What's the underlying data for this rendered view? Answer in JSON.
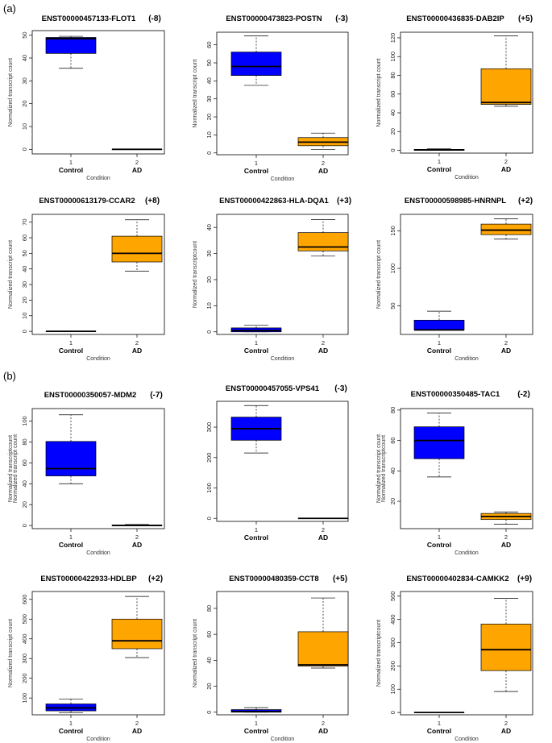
{
  "panels": [
    {
      "label": "(a)"
    },
    {
      "label": "(b)"
    }
  ],
  "chart_data": [
    {
      "type": "box",
      "title": "ENST00000457133-FLOT1",
      "suffix": "(-8)",
      "ylabel": "Normalized transcript count",
      "xlabel": "Condition",
      "ylim": [
        -2,
        52
      ],
      "yticks": [
        0,
        10,
        20,
        30,
        40,
        50
      ],
      "category_numbers": [
        "1",
        "2"
      ],
      "categories": [
        "Control",
        "AD"
      ],
      "series": [
        {
          "name": "Control",
          "color": "#0000ff",
          "min": 35.5,
          "q1": 42,
          "median": 48.5,
          "q3": 49,
          "max": 49.5
        },
        {
          "name": "AD",
          "color": "#ffa500",
          "min": 0,
          "q1": 0,
          "median": 0,
          "q3": 0,
          "max": 0
        }
      ]
    },
    {
      "type": "box",
      "title": "ENST00000473823-POSTN",
      "suffix": "(-3)",
      "ylabel": "Normalized transcript count",
      "xlabel": "Condition",
      "ylim": [
        -1,
        67
      ],
      "yticks": [
        0,
        10,
        20,
        30,
        40,
        50,
        60
      ],
      "category_numbers": [
        "1",
        "2"
      ],
      "categories": [
        "Control",
        "AD"
      ],
      "series": [
        {
          "name": "Control",
          "color": "#0000ff",
          "min": 37.5,
          "q1": 43,
          "median": 48,
          "q3": 56,
          "max": 65
        },
        {
          "name": "AD",
          "color": "#ffa500",
          "min": 2,
          "q1": 4,
          "median": 6,
          "q3": 8.5,
          "max": 11
        }
      ]
    },
    {
      "type": "box",
      "title": "ENST00000436835-DAB2IP",
      "suffix": "(+5)",
      "ylabel": "Normalized transcript count",
      "xlabel": "Condition",
      "ylim": [
        -3,
        126
      ],
      "yticks": [
        0,
        20,
        40,
        60,
        80,
        100,
        120
      ],
      "category_numbers": [
        "1",
        "2"
      ],
      "categories": [
        "Control",
        "AD"
      ],
      "series": [
        {
          "name": "Control",
          "color": "#0000ff",
          "min": 0,
          "q1": 0,
          "median": 0.5,
          "q3": 1,
          "max": 1.5
        },
        {
          "name": "AD",
          "color": "#ffa500",
          "min": 47,
          "q1": 49,
          "median": 51,
          "q3": 87,
          "max": 122
        }
      ]
    },
    {
      "type": "box",
      "title": "ENST00000613179-CCAR2",
      "suffix": "(+8)",
      "ylabel": "Normalized transcript count",
      "xlabel": "Condition",
      "ylim": [
        -2,
        75
      ],
      "yticks": [
        0,
        10,
        20,
        30,
        40,
        50,
        60,
        70
      ],
      "category_numbers": [
        "1",
        "2"
      ],
      "categories": [
        "Control",
        "AD"
      ],
      "series": [
        {
          "name": "Control",
          "color": "#0000ff",
          "min": 0,
          "q1": 0,
          "median": 0,
          "q3": 0,
          "max": 0
        },
        {
          "name": "AD",
          "color": "#ffa500",
          "min": 38.5,
          "q1": 44.5,
          "median": 50,
          "q3": 61,
          "max": 71.5
        }
      ]
    },
    {
      "type": "box",
      "title": "ENST00000422863-HLA-DQA1",
      "suffix": "(+3)",
      "ylabel": "Normalized transcriptcount",
      "xlabel": "Condition",
      "ylim": [
        -1,
        45
      ],
      "yticks": [
        0,
        10,
        20,
        30,
        40
      ],
      "category_numbers": [
        "1",
        "2"
      ],
      "categories": [
        "Control",
        "AD"
      ],
      "series": [
        {
          "name": "Control",
          "color": "#0000ff",
          "min": 0,
          "q1": 0,
          "median": 0.5,
          "q3": 1.5,
          "max": 2.5
        },
        {
          "name": "AD",
          "color": "#ffa500",
          "min": 29,
          "q1": 31,
          "median": 32.5,
          "q3": 38,
          "max": 43
        }
      ]
    },
    {
      "type": "box",
      "title": "ENST00000598985-HNRNPL",
      "suffix": "(+2)",
      "ylabel": "Normalized transcript count",
      "xlabel": "Condition",
      "ylim": [
        12,
        172
      ],
      "yticks": [
        50,
        100,
        150
      ],
      "category_numbers": [
        "1",
        "2"
      ],
      "categories": [
        "Control",
        "AD"
      ],
      "series": [
        {
          "name": "Control",
          "color": "#0000ff",
          "min": 18,
          "q1": 18,
          "median": 18,
          "q3": 31,
          "max": 43
        },
        {
          "name": "AD",
          "color": "#ffa500",
          "min": 139,
          "q1": 145,
          "median": 151,
          "q3": 159,
          "max": 166
        }
      ]
    },
    {
      "type": "box",
      "title": "ENST00000350057-MDM2",
      "suffix": "(-7)",
      "ylabel": "Normalized transcriptcount",
      "ylabel2": "Normalized transcript count",
      "xlabel": "Condition",
      "ylim": [
        -3,
        112
      ],
      "yticks": [
        0,
        20,
        40,
        60,
        80,
        100
      ],
      "category_numbers": [
        "1",
        "2"
      ],
      "categories": [
        "Control",
        "AD"
      ],
      "series": [
        {
          "name": "Control",
          "color": "#0000ff",
          "min": 40,
          "q1": 47.5,
          "median": 54.5,
          "q3": 80.5,
          "max": 106
        },
        {
          "name": "AD",
          "color": "#ffa500",
          "min": 0,
          "q1": 0,
          "median": 0,
          "q3": 0.5,
          "max": 1
        }
      ]
    },
    {
      "type": "box",
      "title": "ENST00000457055-VPS41",
      "suffix": "(-3)",
      "ylabel": "",
      "xlabel": "",
      "ylim": [
        -10,
        385
      ],
      "yticks": [
        0,
        100,
        200,
        300
      ],
      "category_numbers": [
        "1",
        "2"
      ],
      "categories": [
        "Control",
        "AD"
      ],
      "series": [
        {
          "name": "Control",
          "color": "#0000ff",
          "min": 215,
          "q1": 257,
          "median": 295,
          "q3": 333,
          "max": 371
        },
        {
          "name": "AD",
          "color": "#ffa500",
          "min": 0,
          "q1": 0,
          "median": 0,
          "q3": 0,
          "max": 0
        }
      ]
    },
    {
      "type": "box",
      "title": "ENST00000350485-TAC1",
      "suffix": "(-2)",
      "ylabel": "Normalized transcript count",
      "ylabel2": "Normalized transcriptcount",
      "xlabel": "Condition",
      "ylim": [
        2,
        81
      ],
      "yticks": [
        20,
        40,
        60,
        80
      ],
      "category_numbers": [
        "1",
        "2"
      ],
      "categories": [
        "Control",
        "AD"
      ],
      "series": [
        {
          "name": "Control",
          "color": "#0000ff",
          "min": 36,
          "q1": 48,
          "median": 60,
          "q3": 69,
          "max": 78
        },
        {
          "name": "AD",
          "color": "#ffa500",
          "min": 5,
          "q1": 8,
          "median": 10,
          "q3": 12,
          "max": 13
        }
      ]
    },
    {
      "type": "box",
      "title": "ENST00000422933-HDLBP",
      "suffix": "(+2)",
      "ylabel": "Normalized transcript count",
      "xlabel": "Condition",
      "ylim": [
        15,
        640
      ],
      "yticks": [
        100,
        200,
        300,
        400,
        500,
        600
      ],
      "category_numbers": [
        "1",
        "2"
      ],
      "categories": [
        "Control",
        "AD"
      ],
      "series": [
        {
          "name": "Control",
          "color": "#0000ff",
          "min": 25,
          "q1": 35,
          "median": 50,
          "q3": 70,
          "max": 95
        },
        {
          "name": "AD",
          "color": "#ffa500",
          "min": 305,
          "q1": 350,
          "median": 390,
          "q3": 500,
          "max": 615
        }
      ]
    },
    {
      "type": "box",
      "title": "ENST00000480359-CCT8",
      "suffix": "(+5)",
      "ylabel": "Normalized transcript count",
      "xlabel": "Condition",
      "ylim": [
        -2,
        93
      ],
      "yticks": [
        0,
        20,
        40,
        60,
        80
      ],
      "category_numbers": [
        "1",
        "2"
      ],
      "categories": [
        "Control",
        "AD"
      ],
      "series": [
        {
          "name": "Control",
          "color": "#0000ff",
          "min": 0,
          "q1": 0,
          "median": 0.5,
          "q3": 2,
          "max": 3.5
        },
        {
          "name": "AD",
          "color": "#ffa500",
          "min": 34,
          "q1": 35.5,
          "median": 36.5,
          "q3": 62,
          "max": 88
        }
      ]
    },
    {
      "type": "box",
      "title": "ENST00000402834-CAMKK2",
      "suffix": "(+9)",
      "ylabel": "Normalized transcriptcount",
      "xlabel": "Condition",
      "ylim": [
        -10,
        520
      ],
      "yticks": [
        0,
        100,
        200,
        300,
        400,
        500
      ],
      "category_numbers": [
        "1",
        "2"
      ],
      "categories": [
        "Control",
        "AD"
      ],
      "series": [
        {
          "name": "Control",
          "color": "#0000ff",
          "min": 0,
          "q1": 0,
          "median": 0,
          "q3": 0,
          "max": 0
        },
        {
          "name": "AD",
          "color": "#ffa500",
          "min": 90,
          "q1": 180,
          "median": 270,
          "q3": 380,
          "max": 490
        }
      ]
    }
  ]
}
